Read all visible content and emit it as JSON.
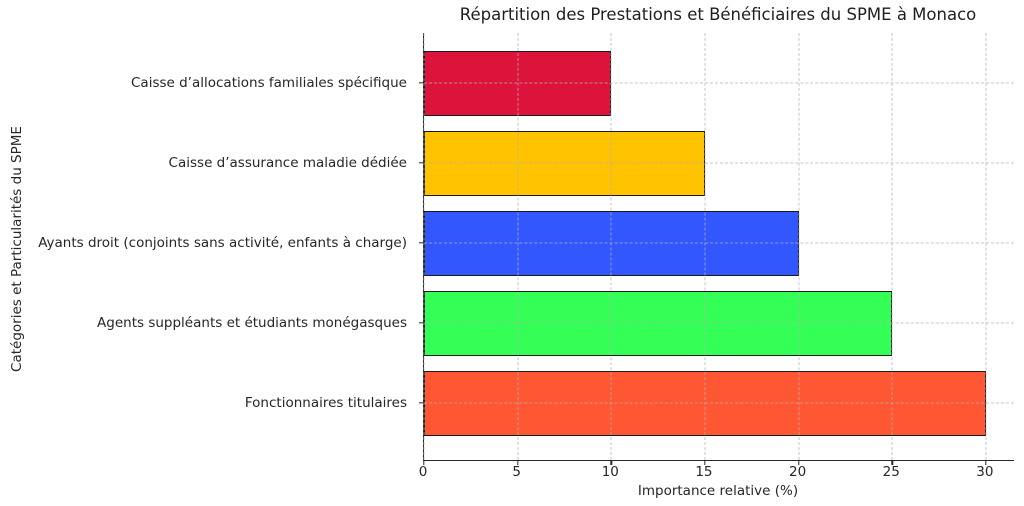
{
  "chart_data": {
    "type": "bar",
    "orientation": "horizontal",
    "title": "Répartition des Prestations et Bénéficiaires du SPME à Monaco",
    "xlabel": "Importance relative (%)",
    "ylabel": "Catégories et Particularités du SPME",
    "categories": [
      "Caisse d’allocations familiales spécifique",
      "Caisse d’assurance maladie dédiée",
      "Ayants droit (conjoints sans activité, enfants à charge)",
      "Agents suppléants et étudiants monégasques",
      "Fonctionnaires titulaires"
    ],
    "values": [
      10,
      15,
      20,
      25,
      30
    ],
    "colors": [
      "#DC143C",
      "#FFC300",
      "#3357FF",
      "#33FF57",
      "#FF5733"
    ],
    "bar_edge_color": "#1a1a1a",
    "xticks": [
      0,
      5,
      10,
      15,
      20,
      25,
      30
    ],
    "xlim": [
      0,
      31.5
    ],
    "grid": "dashed",
    "grid_color": "#b0b0b0",
    "legend": "none"
  }
}
